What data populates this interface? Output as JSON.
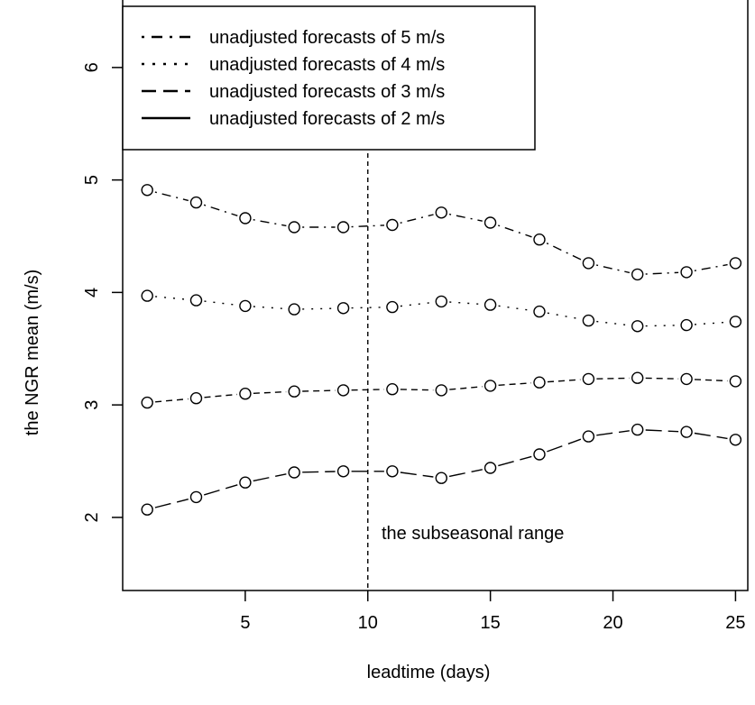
{
  "chart_data": {
    "type": "line",
    "xlabel": "leadtime (days)",
    "ylabel": "the NGR mean (m/s)",
    "xlim": [
      0,
      25.5
    ],
    "ylim": [
      1.35,
      6.6
    ],
    "x_ticks": [
      5,
      10,
      15,
      20,
      25
    ],
    "y_ticks": [
      2,
      3,
      4,
      5,
      6
    ],
    "grid": false,
    "legend_position": "top-left",
    "x": [
      1,
      3,
      5,
      7,
      9,
      11,
      13,
      15,
      17,
      19,
      21,
      23,
      25
    ],
    "series": [
      {
        "name": "unadjusted forecasts of 5 m/s",
        "line_style": "dotdash",
        "values": [
          4.91,
          4.8,
          4.66,
          4.58,
          4.58,
          4.6,
          4.71,
          4.62,
          4.47,
          4.26,
          4.16,
          4.18,
          4.26
        ]
      },
      {
        "name": "unadjusted forecasts of 4 m/s",
        "line_style": "dotted",
        "values": [
          3.97,
          3.93,
          3.88,
          3.85,
          3.86,
          3.87,
          3.92,
          3.89,
          3.83,
          3.75,
          3.7,
          3.71,
          3.74
        ]
      },
      {
        "name": "unadjusted forecasts of 3 m/s",
        "line_style": "dashed",
        "values": [
          3.02,
          3.06,
          3.1,
          3.12,
          3.13,
          3.14,
          3.13,
          3.17,
          3.2,
          3.23,
          3.24,
          3.23,
          3.21
        ]
      },
      {
        "name": "unadjusted forecasts of 2 m/s",
        "line_style": "longdash",
        "values": [
          2.07,
          2.18,
          2.31,
          2.4,
          2.41,
          2.41,
          2.35,
          2.44,
          2.56,
          2.72,
          2.78,
          2.76,
          2.69
        ]
      }
    ],
    "vline": {
      "x": 10,
      "style": "dashed"
    },
    "annotation": "the subseasonal range"
  }
}
